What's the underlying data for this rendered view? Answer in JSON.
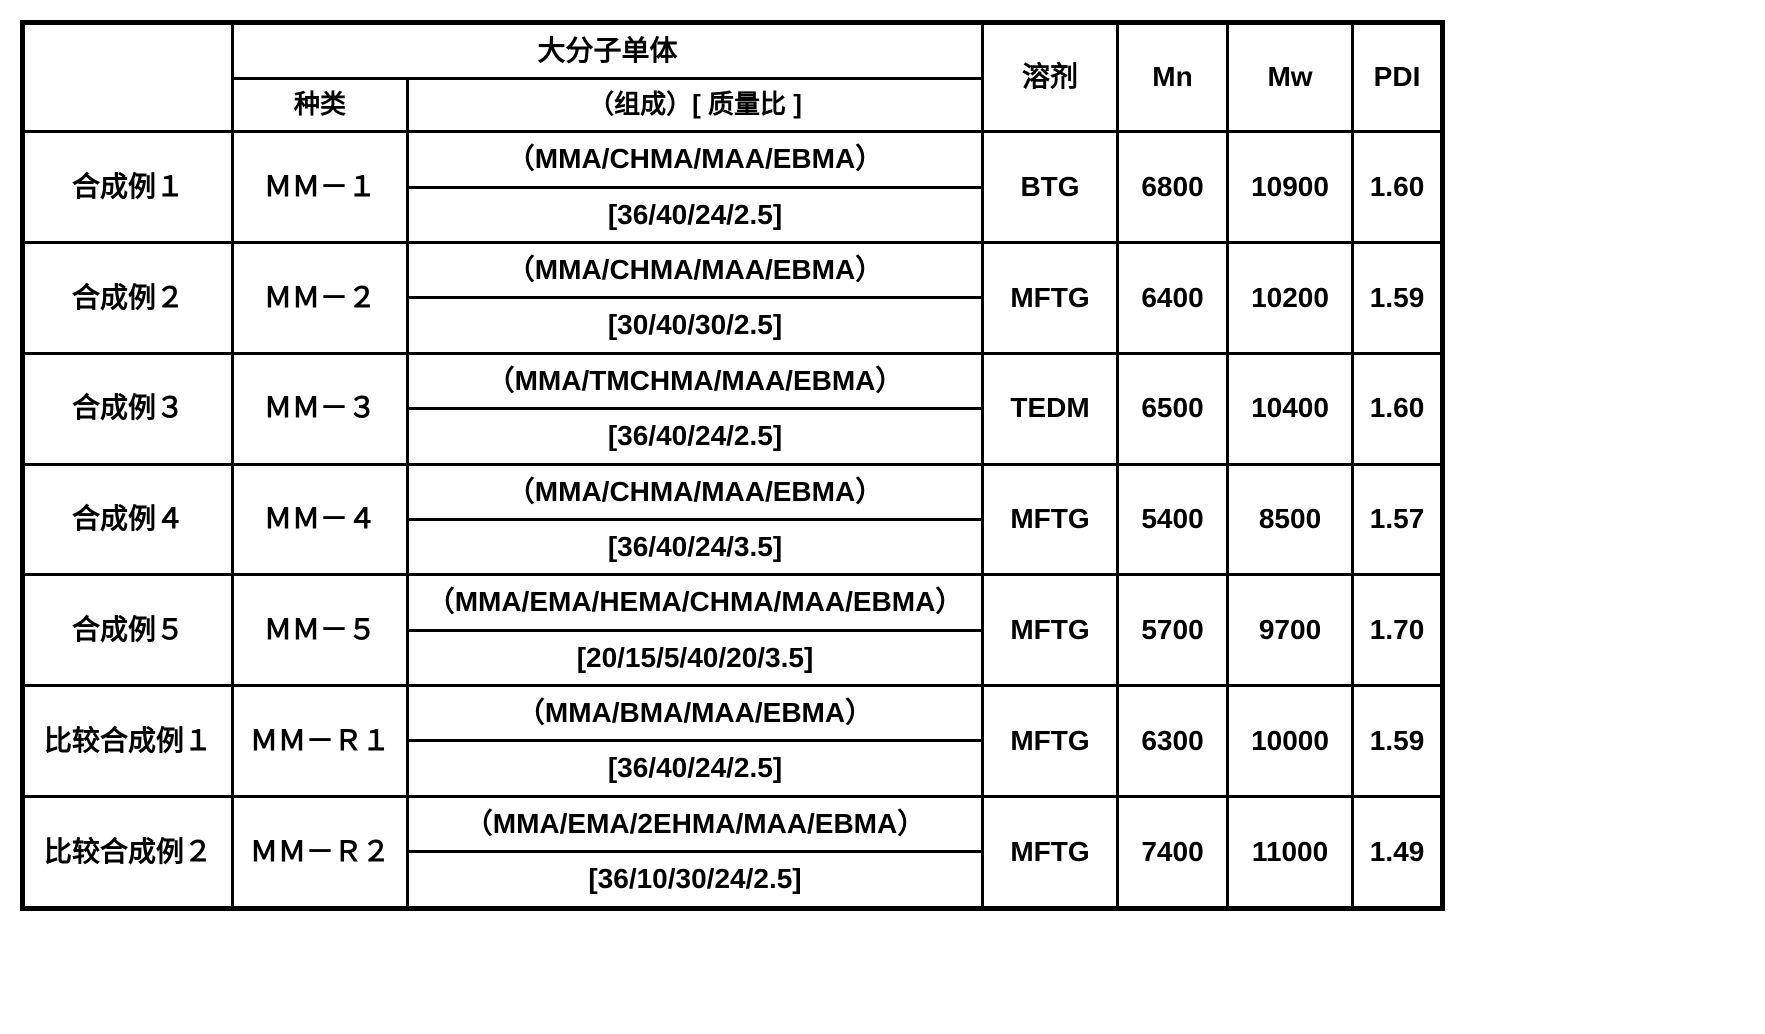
{
  "headers": {
    "macromonomer": "大分子单体",
    "type": "种类",
    "composition": "（组成）[ 质量比 ]",
    "solvent": "溶剂",
    "mn": "Mn",
    "mw": "Mw",
    "pdi": "PDI"
  },
  "rows": [
    {
      "label": "合成例１",
      "type": "ＭＭ－１",
      "comp": "（MMA/CHMA/MAA/EBMA）",
      "ratio": "[36/40/24/2.5]",
      "solvent": "BTG",
      "mn": "6800",
      "mw": "10900",
      "pdi": "1.60"
    },
    {
      "label": "合成例２",
      "type": "ＭＭ－２",
      "comp": "（MMA/CHMA/MAA/EBMA）",
      "ratio": "[30/40/30/2.5]",
      "solvent": "MFTG",
      "mn": "6400",
      "mw": "10200",
      "pdi": "1.59"
    },
    {
      "label": "合成例３",
      "type": "ＭＭ－３",
      "comp": "（MMA/TMCHMA/MAA/EBMA）",
      "ratio": "[36/40/24/2.5]",
      "solvent": "TEDM",
      "mn": "6500",
      "mw": "10400",
      "pdi": "1.60"
    },
    {
      "label": "合成例４",
      "type": "ＭＭ－４",
      "comp": "（MMA/CHMA/MAA/EBMA）",
      "ratio": "[36/40/24/3.5]",
      "solvent": "MFTG",
      "mn": "5400",
      "mw": "8500",
      "pdi": "1.57"
    },
    {
      "label": "合成例５",
      "type": "ＭＭ－５",
      "comp": "（MMA/EMA/HEMA/CHMA/MAA/EBMA）",
      "ratio": "[20/15/5/40/20/3.5]",
      "solvent": "MFTG",
      "mn": "5700",
      "mw": "9700",
      "pdi": "1.70"
    },
    {
      "label": "比较合成例１",
      "type": "ＭＭ－Ｒ１",
      "comp": "（MMA/BMA/MAA/EBMA）",
      "ratio": "[36/40/24/2.5]",
      "solvent": "MFTG",
      "mn": "6300",
      "mw": "10000",
      "pdi": "1.59"
    },
    {
      "label": "比较合成例２",
      "type": "ＭＭ－Ｒ２",
      "comp": "（MMA/EMA/2EHMA/MAA/EBMA）",
      "ratio": "[36/10/30/24/2.5]",
      "solvent": "MFTG",
      "mn": "7400",
      "mw": "11000",
      "pdi": "1.49"
    }
  ],
  "style": {
    "border_color": "#000000",
    "background": "#ffffff",
    "font_size_main": 28,
    "font_size_header_sub": 26,
    "outer_border_width": 5,
    "inner_border_width": 3
  }
}
